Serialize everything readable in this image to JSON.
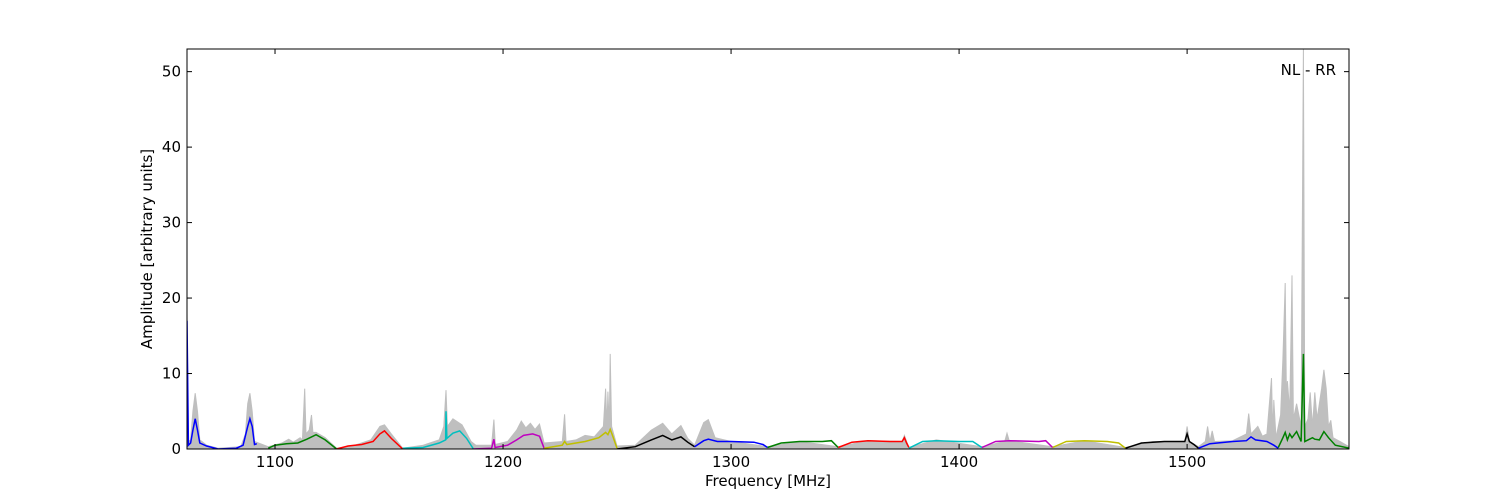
{
  "chart_data": {
    "type": "line",
    "xlabel": "Frequency [MHz]",
    "ylabel": "Amplitude [arbitrary units]",
    "annotation": "NL - RR",
    "xlim": [
      1061.4,
      1571
    ],
    "ylim": [
      0,
      53
    ],
    "xticks": [
      1100,
      1200,
      1300,
      1400,
      1500
    ],
    "yticks": [
      0,
      10,
      20,
      30,
      40,
      50
    ],
    "grid": false,
    "envelope_color": "#bfbfbf",
    "envelope": [
      [
        1061.4,
        18
      ],
      [
        1062,
        1
      ],
      [
        1063,
        1.2
      ],
      [
        1064,
        5
      ],
      [
        1065,
        7.4
      ],
      [
        1066,
        5
      ],
      [
        1067,
        1.2
      ],
      [
        1070,
        0.5
      ],
      [
        1075,
        0.1
      ],
      [
        1085,
        0.3
      ],
      [
        1087,
        2
      ],
      [
        1088,
        6
      ],
      [
        1089,
        7.4
      ],
      [
        1090,
        5
      ],
      [
        1091,
        1
      ],
      [
        1097,
        0.3
      ],
      [
        1103,
        0.8
      ],
      [
        1106,
        1.3
      ],
      [
        1108,
        0.9
      ],
      [
        1111,
        1.5
      ],
      [
        1112,
        1.2
      ],
      [
        1113,
        8
      ],
      [
        1113.6,
        2
      ],
      [
        1115,
        2.5
      ],
      [
        1116,
        4.5
      ],
      [
        1116.6,
        2.2
      ],
      [
        1118,
        2.2
      ],
      [
        1122,
        1.5
      ],
      [
        1127,
        0.1
      ],
      [
        1135,
        0.5
      ],
      [
        1142,
        1.2
      ],
      [
        1146,
        3
      ],
      [
        1148,
        3.2
      ],
      [
        1151,
        2
      ],
      [
        1156,
        0.1
      ],
      [
        1165,
        0.5
      ],
      [
        1172,
        1.2
      ],
      [
        1174,
        3
      ],
      [
        1175,
        7.8
      ],
      [
        1175.6,
        3
      ],
      [
        1178,
        4
      ],
      [
        1182,
        3.2
      ],
      [
        1186,
        1
      ],
      [
        1188,
        0.5
      ],
      [
        1195,
        0.5
      ],
      [
        1196,
        3.9
      ],
      [
        1196.6,
        0.6
      ],
      [
        1202,
        1
      ],
      [
        1206,
        2.5
      ],
      [
        1208,
        3.7
      ],
      [
        1210,
        2.8
      ],
      [
        1212,
        3.4
      ],
      [
        1214,
        2.6
      ],
      [
        1216,
        3.3
      ],
      [
        1218,
        0.8
      ],
      [
        1226,
        1
      ],
      [
        1227,
        4.6
      ],
      [
        1227.6,
        1
      ],
      [
        1232,
        1.2
      ],
      [
        1236,
        1.8
      ],
      [
        1240,
        1.6
      ],
      [
        1244,
        3
      ],
      [
        1245,
        8
      ],
      [
        1245.6,
        3
      ],
      [
        1246,
        7.6
      ],
      [
        1246.6,
        3
      ],
      [
        1247,
        12.6
      ],
      [
        1247.6,
        3
      ],
      [
        1250,
        0.4
      ],
      [
        1258,
        0.5
      ],
      [
        1265,
        2.5
      ],
      [
        1270,
        3.4
      ],
      [
        1274,
        2
      ],
      [
        1278,
        3.1
      ],
      [
        1281,
        1.4
      ],
      [
        1284,
        0.5
      ],
      [
        1288,
        3.5
      ],
      [
        1290,
        3.9
      ],
      [
        1293,
        1.5
      ],
      [
        1300,
        1
      ],
      [
        1316,
        0.3
      ],
      [
        1330,
        1
      ],
      [
        1347,
        0.3
      ],
      [
        1360,
        1.1
      ],
      [
        1375,
        1
      ],
      [
        1376,
        1.8
      ],
      [
        1378,
        0.2
      ],
      [
        1390,
        1.2
      ],
      [
        1410,
        0.3
      ],
      [
        1420,
        1
      ],
      [
        1421,
        2.1
      ],
      [
        1422,
        1.1
      ],
      [
        1441,
        0.3
      ],
      [
        1455,
        1.1
      ],
      [
        1473,
        0.2
      ],
      [
        1485,
        1
      ],
      [
        1499,
        1
      ],
      [
        1500,
        3
      ],
      [
        1501,
        1
      ],
      [
        1505,
        0.3
      ],
      [
        1508,
        1
      ],
      [
        1509,
        3
      ],
      [
        1510,
        1
      ],
      [
        1511,
        2.4
      ],
      [
        1512,
        1
      ],
      [
        1520,
        1.1
      ],
      [
        1526,
        2
      ],
      [
        1527,
        4.7
      ],
      [
        1528,
        2
      ],
      [
        1531,
        3
      ],
      [
        1533,
        1.7
      ],
      [
        1535,
        2
      ],
      [
        1537,
        9.4
      ],
      [
        1537.6,
        2
      ],
      [
        1538,
        6.5
      ],
      [
        1539,
        1.5
      ],
      [
        1541,
        4.5
      ],
      [
        1542,
        12
      ],
      [
        1543,
        22
      ],
      [
        1543.6,
        6
      ],
      [
        1544,
        9
      ],
      [
        1545,
        5
      ],
      [
        1546,
        23
      ],
      [
        1546.6,
        4
      ],
      [
        1548,
        6
      ],
      [
        1550,
        3
      ],
      [
        1551,
        53
      ],
      [
        1551.6,
        3
      ],
      [
        1553,
        4
      ],
      [
        1554,
        7.5
      ],
      [
        1555,
        3
      ],
      [
        1556,
        7.5
      ],
      [
        1557,
        4
      ],
      [
        1559,
        8
      ],
      [
        1560,
        10.5
      ],
      [
        1561,
        8
      ],
      [
        1562,
        3
      ],
      [
        1563,
        3.8
      ],
      [
        1564,
        1.5
      ],
      [
        1567,
        1
      ],
      [
        1571,
        0.3
      ]
    ],
    "series": [
      {
        "color": "#0000ff",
        "points": [
          [
            1061.4,
            17
          ],
          [
            1062,
            0.5
          ],
          [
            1063,
            0.8
          ],
          [
            1064,
            2.5
          ],
          [
            1065,
            4
          ],
          [
            1066,
            2.5
          ],
          [
            1067,
            0.8
          ],
          [
            1070,
            0.4
          ],
          [
            1075,
            0
          ],
          [
            1083,
            0.1
          ],
          [
            1086,
            0.5
          ],
          [
            1088,
            3
          ],
          [
            1089,
            4
          ],
          [
            1090,
            3
          ],
          [
            1091,
            0.6
          ],
          [
            1092,
            0.7
          ]
        ]
      },
      {
        "color": "#008000",
        "points": [
          [
            1097,
            0.1
          ],
          [
            1100,
            0.5
          ],
          [
            1105,
            0.7
          ],
          [
            1110,
            0.8
          ],
          [
            1114,
            1.3
          ],
          [
            1118,
            1.9
          ],
          [
            1122,
            1.2
          ],
          [
            1127,
            0
          ]
        ]
      },
      {
        "color": "#ff0000",
        "points": [
          [
            1127,
            0
          ],
          [
            1132,
            0.4
          ],
          [
            1138,
            0.6
          ],
          [
            1143,
            1
          ],
          [
            1146,
            2
          ],
          [
            1148,
            2.4
          ],
          [
            1151,
            1.4
          ],
          [
            1156,
            0
          ]
        ]
      },
      {
        "color": "#00bfbf",
        "points": [
          [
            1156,
            0.1
          ],
          [
            1165,
            0.2
          ],
          [
            1172,
            0.8
          ],
          [
            1174.8,
            1.2
          ],
          [
            1175,
            5
          ],
          [
            1175.4,
            1.4
          ],
          [
            1178,
            2.1
          ],
          [
            1181,
            2.4
          ],
          [
            1184,
            1.4
          ],
          [
            1187,
            0
          ]
        ]
      },
      {
        "color": "#bf00bf",
        "points": [
          [
            1187,
            0
          ],
          [
            1195,
            0.1
          ],
          [
            1196,
            1.3
          ],
          [
            1196.5,
            0.2
          ],
          [
            1202,
            0.5
          ],
          [
            1206,
            1.2
          ],
          [
            1209,
            1.8
          ],
          [
            1213,
            2
          ],
          [
            1216,
            1.7
          ],
          [
            1218,
            0.1
          ]
        ]
      },
      {
        "color": "#bfbf00",
        "points": [
          [
            1218,
            0.1
          ],
          [
            1226,
            0.5
          ],
          [
            1227,
            1
          ],
          [
            1228,
            0.6
          ],
          [
            1236,
            1
          ],
          [
            1242,
            1.5
          ],
          [
            1245,
            2.2
          ],
          [
            1246,
            1.9
          ],
          [
            1247,
            2.6
          ],
          [
            1248,
            1.8
          ],
          [
            1250,
            0.1
          ]
        ]
      },
      {
        "color": "#000000",
        "points": [
          [
            1250,
            0
          ],
          [
            1258,
            0.3
          ],
          [
            1265,
            1.2
          ],
          [
            1270,
            1.8
          ],
          [
            1274,
            1.2
          ],
          [
            1278,
            1.6
          ],
          [
            1281,
            0.9
          ],
          [
            1284,
            0.3
          ]
        ]
      },
      {
        "color": "#0000ff",
        "points": [
          [
            1284,
            0.3
          ],
          [
            1288,
            1.1
          ],
          [
            1290,
            1.3
          ],
          [
            1294,
            1
          ],
          [
            1300,
            1
          ],
          [
            1310,
            0.9
          ],
          [
            1314,
            0.6
          ],
          [
            1316,
            0.2
          ]
        ]
      },
      {
        "color": "#008000",
        "points": [
          [
            1316,
            0.2
          ],
          [
            1322,
            0.8
          ],
          [
            1330,
            1
          ],
          [
            1340,
            1
          ],
          [
            1344,
            1.1
          ],
          [
            1347,
            0.2
          ]
        ]
      },
      {
        "color": "#ff0000",
        "points": [
          [
            1347,
            0.2
          ],
          [
            1353,
            0.9
          ],
          [
            1360,
            1.1
          ],
          [
            1370,
            1
          ],
          [
            1375,
            1
          ],
          [
            1376,
            1.5
          ],
          [
            1377,
            0.8
          ],
          [
            1378,
            0.2
          ]
        ]
      },
      {
        "color": "#00bfbf",
        "points": [
          [
            1378,
            0.1
          ],
          [
            1384,
            1
          ],
          [
            1390,
            1.1
          ],
          [
            1400,
            1
          ],
          [
            1406,
            1
          ],
          [
            1410,
            0.2
          ]
        ]
      },
      {
        "color": "#bf00bf",
        "points": [
          [
            1410,
            0.2
          ],
          [
            1416,
            1
          ],
          [
            1422,
            1.1
          ],
          [
            1435,
            1
          ],
          [
            1438,
            1.1
          ],
          [
            1441,
            0.2
          ]
        ]
      },
      {
        "color": "#bfbf00",
        "points": [
          [
            1441,
            0.2
          ],
          [
            1447,
            1
          ],
          [
            1455,
            1.1
          ],
          [
            1465,
            1
          ],
          [
            1470,
            0.8
          ],
          [
            1473,
            0.1
          ]
        ]
      },
      {
        "color": "#000000",
        "points": [
          [
            1473,
            0.1
          ],
          [
            1480,
            0.8
          ],
          [
            1490,
            1
          ],
          [
            1499,
            1
          ],
          [
            1500,
            2
          ],
          [
            1501,
            1
          ],
          [
            1503,
            0.6
          ],
          [
            1505,
            0.1
          ]
        ]
      },
      {
        "color": "#0000ff",
        "points": [
          [
            1505,
            0.1
          ],
          [
            1510,
            0.7
          ],
          [
            1520,
            1
          ],
          [
            1526,
            1.1
          ],
          [
            1528,
            1.6
          ],
          [
            1530,
            1.2
          ],
          [
            1535,
            1
          ],
          [
            1538,
            0.5
          ],
          [
            1540,
            0.1
          ]
        ]
      },
      {
        "color": "#008000",
        "points": [
          [
            1540,
            0.2
          ],
          [
            1542,
            1.5
          ],
          [
            1543,
            2.2
          ],
          [
            1544,
            1.2
          ],
          [
            1545,
            2
          ],
          [
            1546,
            1.5
          ],
          [
            1548,
            2.3
          ],
          [
            1550,
            1
          ],
          [
            1551,
            12.6
          ],
          [
            1551.6,
            1
          ],
          [
            1553,
            1.2
          ],
          [
            1555,
            1.5
          ],
          [
            1556,
            1.3
          ],
          [
            1558,
            1.2
          ],
          [
            1560,
            2.3
          ],
          [
            1562,
            1.5
          ],
          [
            1565,
            0.5
          ],
          [
            1571,
            0.1
          ]
        ]
      }
    ]
  }
}
